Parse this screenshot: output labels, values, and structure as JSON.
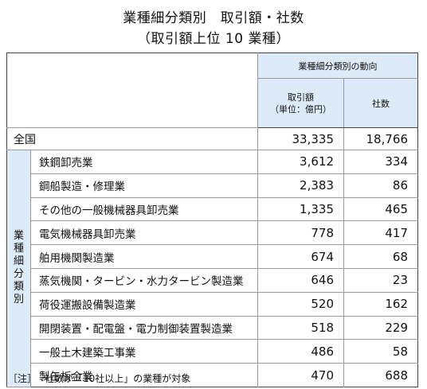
{
  "title_line1": "業種細分類別　取引額・社数",
  "title_line2": "（取引額上位 10 業種）",
  "header": {
    "group": "業種細分類別の動向",
    "amount_line1": "取引額",
    "amount_line2": "（単位：億円）",
    "companies": "社数"
  },
  "total": {
    "label": "全国",
    "amount": "33,335",
    "companies": "18,766"
  },
  "side_label": [
    "業",
    "種",
    "細",
    "分",
    "類",
    "別"
  ],
  "rows": [
    {
      "label": "鉄鋼卸売業",
      "amount": "3,612",
      "companies": "334"
    },
    {
      "label": "鋼船製造・修理業",
      "amount": "2,383",
      "companies": "86"
    },
    {
      "label": "その他の一般機械器具卸売業",
      "amount": "1,335",
      "companies": "465"
    },
    {
      "label": "電気機械器具卸売業",
      "amount": "778",
      "companies": "417"
    },
    {
      "label": "舶用機関製造業",
      "amount": "674",
      "companies": "68"
    },
    {
      "label": "蒸気機関・タービン・水力タービン製造業",
      "amount": "646",
      "companies": "23"
    },
    {
      "label": "荷役運搬設備製造業",
      "amount": "520",
      "companies": "162"
    },
    {
      "label": "開閉装置・配電盤・電力制御装置製造業",
      "amount": "518",
      "companies": "229"
    },
    {
      "label": "一般土木建築工事業",
      "amount": "486",
      "companies": "58"
    },
    {
      "label": "製缶板金業",
      "amount": "470",
      "companies": "688"
    }
  ],
  "note": {
    "bracket": "［注］",
    "text": "社数が「10社以上」の業種が対象"
  }
}
